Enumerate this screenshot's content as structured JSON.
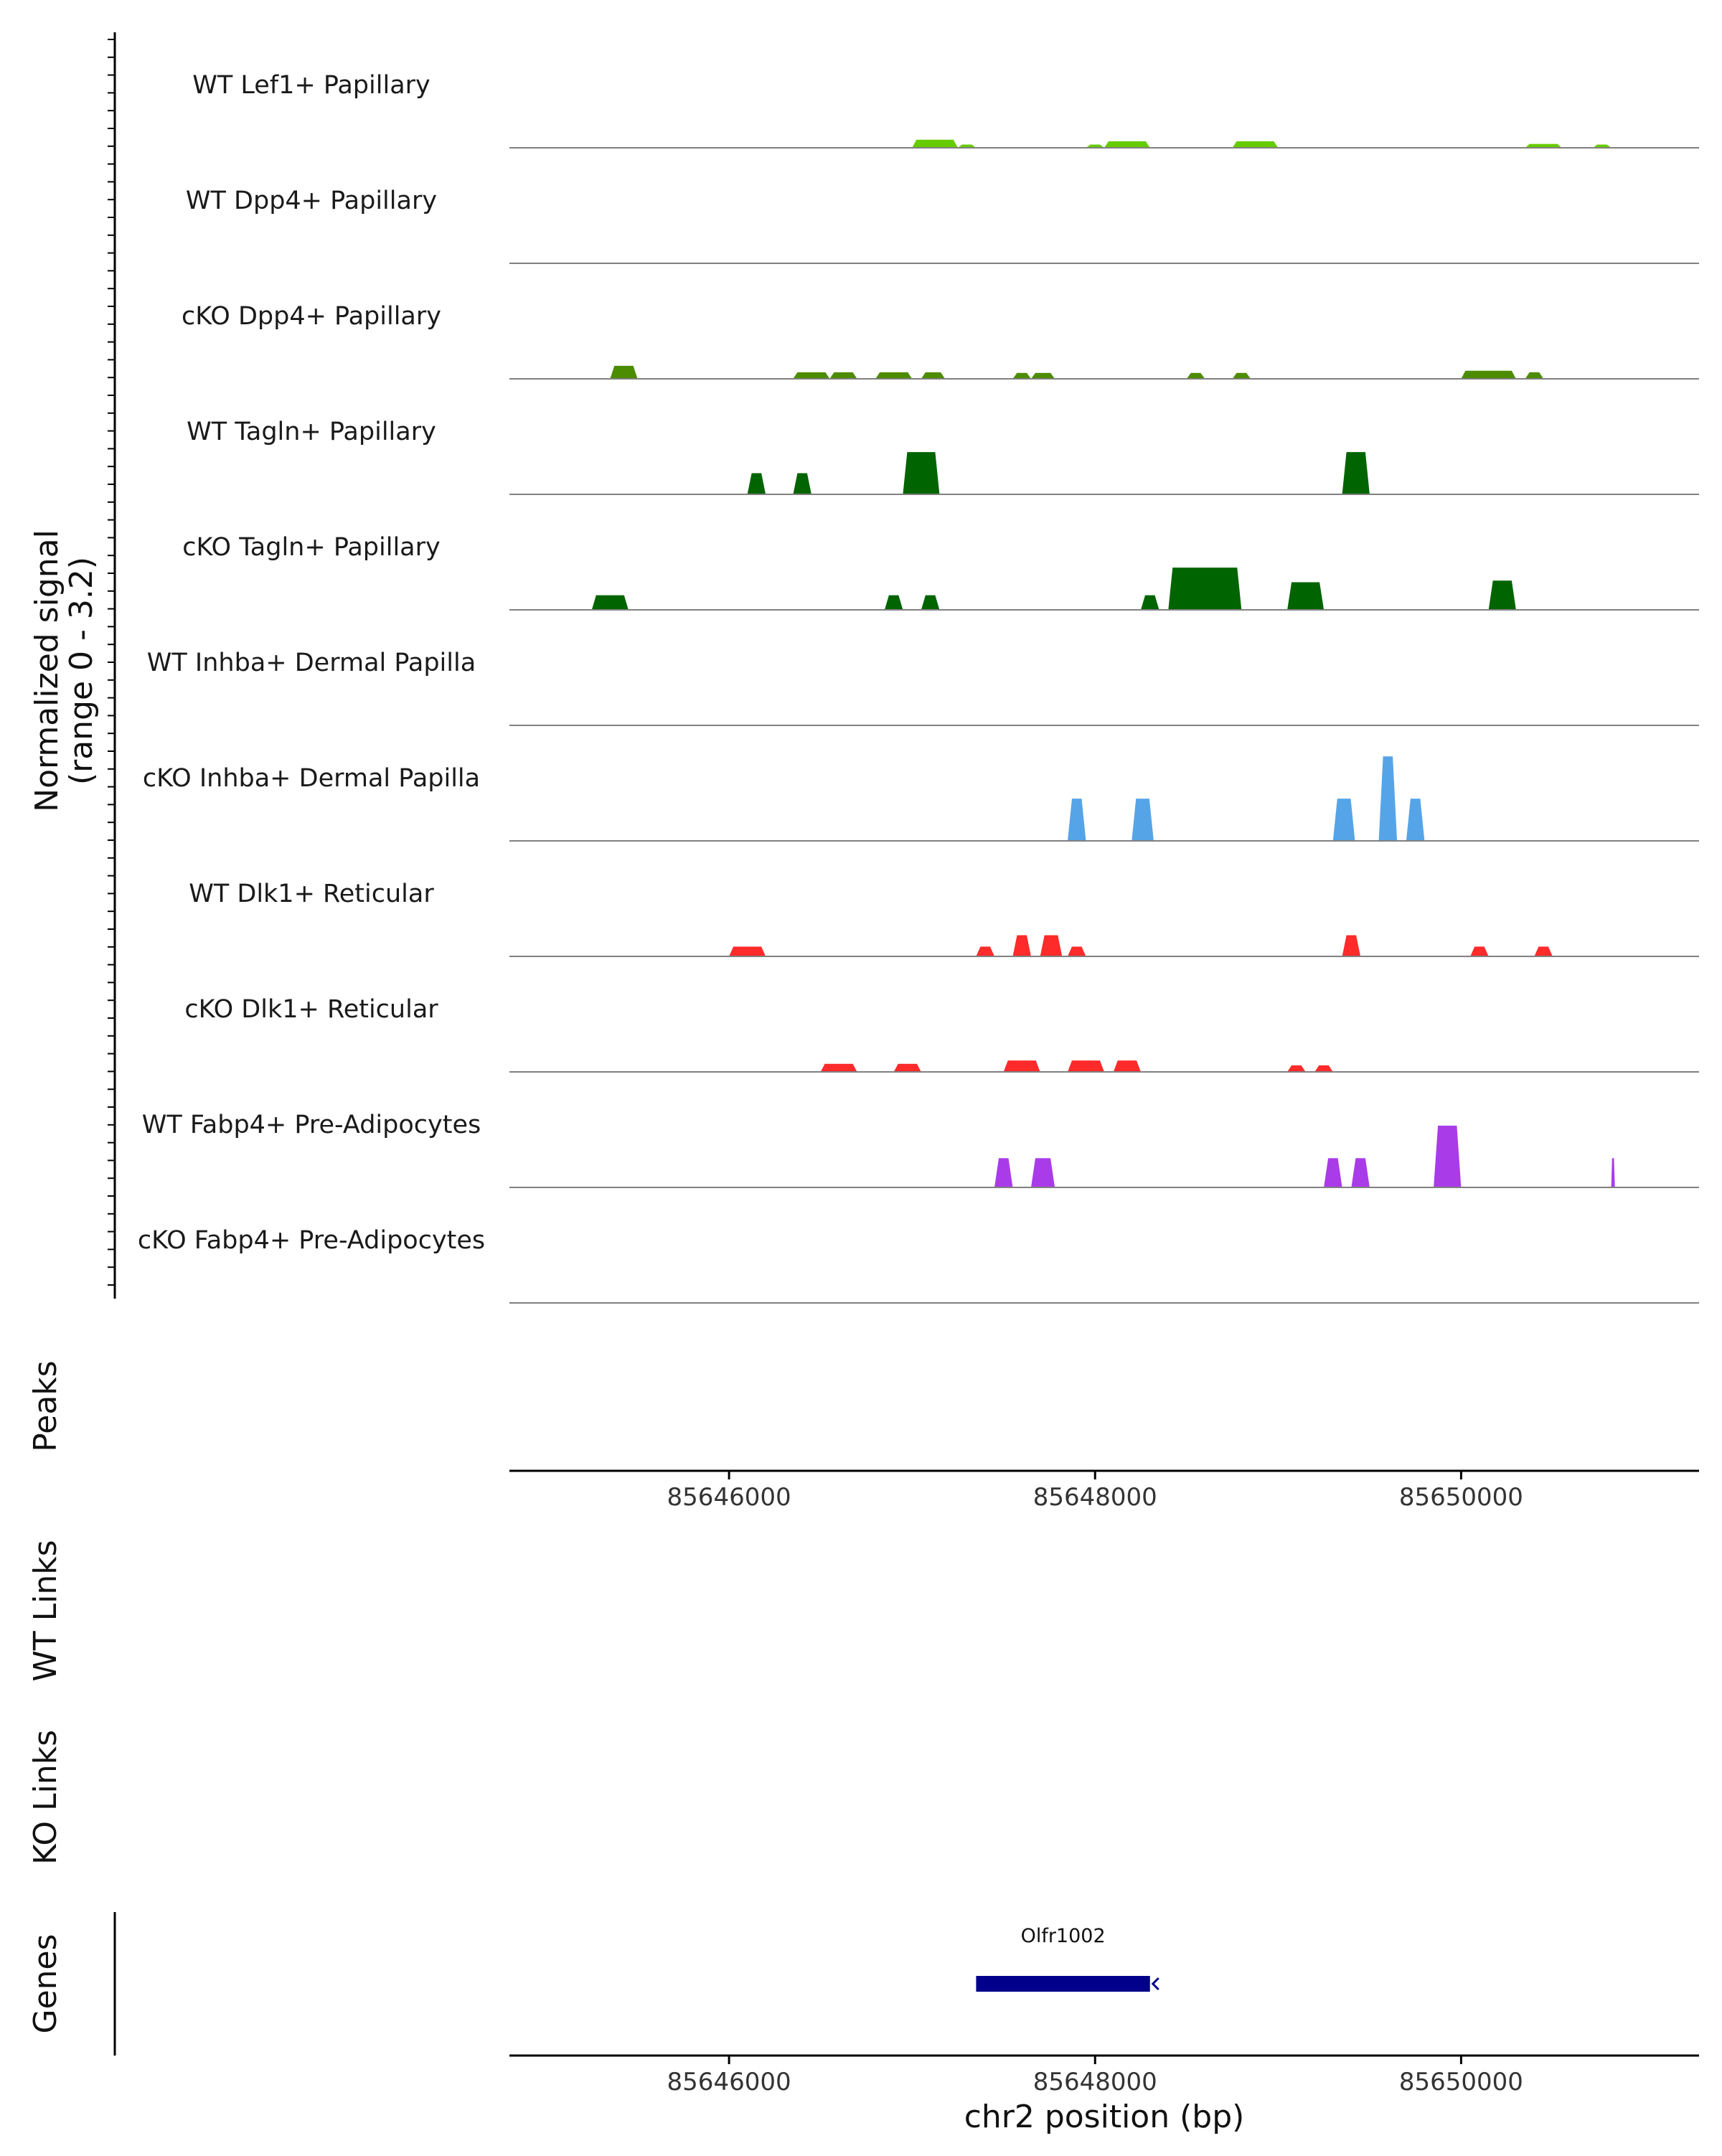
{
  "chart_data": {
    "type": "coverage",
    "chromosome": "chr2",
    "xlim": [
      85644800,
      85651300
    ],
    "x_ticks": [
      85646000,
      85648000,
      85650000
    ],
    "xlabel": "chr2 position (bp)",
    "ylabel_line1": "Normalized signal",
    "ylabel_line2": "(range 0 - 3.2)",
    "ylim": [
      0,
      3.2
    ],
    "tracks": [
      {
        "name": "WT Lef1+ Papillary",
        "color": "#66CC00",
        "peaks": [
          [
            85647000,
            85647250,
            0.25
          ],
          [
            85647250,
            85647350,
            0.1
          ],
          [
            85647950,
            85648050,
            0.1
          ],
          [
            85648050,
            85648300,
            0.2
          ],
          [
            85648750,
            85649000,
            0.2
          ],
          [
            85650350,
            85650550,
            0.12
          ],
          [
            85650720,
            85650820,
            0.1
          ]
        ]
      },
      {
        "name": "WT Dpp4+ Papillary",
        "color": "#4C8C00",
        "peaks": []
      },
      {
        "name": "cKO Dpp4+ Papillary",
        "color": "#4C8C00",
        "peaks": [
          [
            85645350,
            85645500,
            0.4
          ],
          [
            85646350,
            85646550,
            0.2
          ],
          [
            85646550,
            85646700,
            0.2
          ],
          [
            85646800,
            85647000,
            0.2
          ],
          [
            85647050,
            85647180,
            0.2
          ],
          [
            85647550,
            85647650,
            0.18
          ],
          [
            85647650,
            85647780,
            0.18
          ],
          [
            85648500,
            85648600,
            0.18
          ],
          [
            85648750,
            85648850,
            0.18
          ],
          [
            85650000,
            85650300,
            0.25
          ],
          [
            85650350,
            85650450,
            0.2
          ]
        ]
      },
      {
        "name": "WT Tagln+ Papillary",
        "color": "#006400",
        "peaks": [
          [
            85646100,
            85646200,
            0.65
          ],
          [
            85646350,
            85646450,
            0.65
          ],
          [
            85646950,
            85647150,
            1.3
          ],
          [
            85649350,
            85649500,
            1.3
          ]
        ]
      },
      {
        "name": "cKO Tagln+ Papillary",
        "color": "#006400",
        "peaks": [
          [
            85645250,
            85645450,
            0.45
          ],
          [
            85646850,
            85646950,
            0.45
          ],
          [
            85647050,
            85647150,
            0.45
          ],
          [
            85648250,
            85648350,
            0.45
          ],
          [
            85648400,
            85648800,
            1.3
          ],
          [
            85649050,
            85649250,
            0.85
          ],
          [
            85650150,
            85650300,
            0.9
          ]
        ]
      },
      {
        "name": "WT Inhba+ Dermal Papilla",
        "color": "#56A4E8",
        "peaks": []
      },
      {
        "name": "cKO Inhba+ Dermal Papilla",
        "color": "#56A4E8",
        "peaks": [
          [
            85647850,
            85647950,
            1.3
          ],
          [
            85648200,
            85648320,
            1.3
          ],
          [
            85649300,
            85649420,
            1.3
          ],
          [
            85649550,
            85649650,
            2.6
          ],
          [
            85649700,
            85649800,
            1.3
          ]
        ]
      },
      {
        "name": "WT Dlk1+ Reticular",
        "color": "#FF2A2A",
        "peaks": [
          [
            85646000,
            85646200,
            0.3
          ],
          [
            85647350,
            85647450,
            0.3
          ],
          [
            85647550,
            85647650,
            0.65
          ],
          [
            85647700,
            85647820,
            0.65
          ],
          [
            85647850,
            85647950,
            0.3
          ],
          [
            85649350,
            85649450,
            0.65
          ],
          [
            85650050,
            85650150,
            0.3
          ],
          [
            85650400,
            85650500,
            0.3
          ]
        ]
      },
      {
        "name": "cKO Dlk1+ Reticular",
        "color": "#FF2A2A",
        "peaks": [
          [
            85646500,
            85646700,
            0.25
          ],
          [
            85646900,
            85647050,
            0.25
          ],
          [
            85647500,
            85647700,
            0.35
          ],
          [
            85647850,
            85648050,
            0.35
          ],
          [
            85648100,
            85648250,
            0.35
          ],
          [
            85649050,
            85649150,
            0.2
          ],
          [
            85649200,
            85649300,
            0.2
          ]
        ]
      },
      {
        "name": "WT Fabp4+ Pre-Adipocytes",
        "color": "#A93BE8",
        "peaks": [
          [
            85647450,
            85647550,
            0.9
          ],
          [
            85647650,
            85647780,
            0.9
          ],
          [
            85649250,
            85649350,
            0.9
          ],
          [
            85649400,
            85649500,
            0.9
          ],
          [
            85649850,
            85650000,
            1.9
          ],
          [
            85650820,
            85650840,
            0.9
          ]
        ]
      },
      {
        "name": "cKO Fabp4+ Pre-Adipocytes",
        "color": "#A93BE8",
        "peaks": []
      }
    ],
    "side_labels": {
      "peaks": "Peaks",
      "wt_links": "WT Links",
      "ko_links": "KO Links",
      "genes": "Genes"
    },
    "genes": [
      {
        "name": "Olfr1002",
        "start": 85647350,
        "end": 85648300,
        "strand": "-",
        "color": "#00008B"
      }
    ]
  }
}
